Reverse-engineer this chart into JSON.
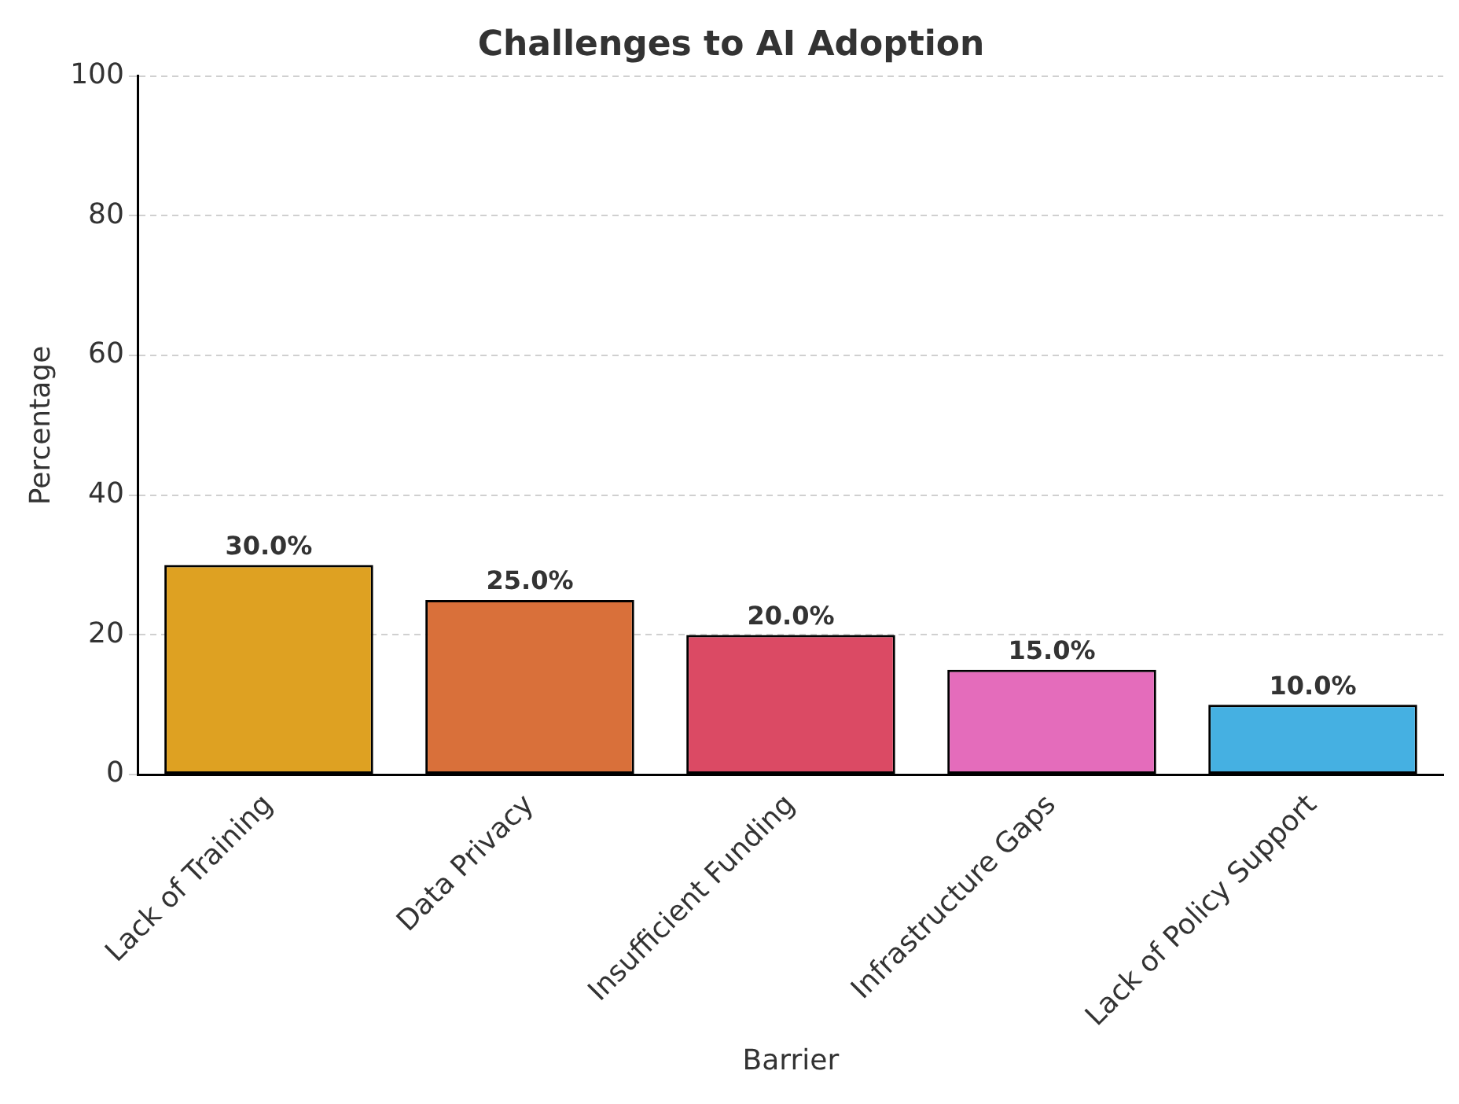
{
  "chart_data": {
    "type": "bar",
    "title": "Challenges to AI Adoption",
    "xlabel": "Barrier",
    "ylabel": "Percentage",
    "categories": [
      "Lack of Training",
      "Data Privacy",
      "Insufficient Funding",
      "Infrastructure Gaps",
      "Lack of Policy Support"
    ],
    "values": [
      30,
      25,
      20,
      15,
      10
    ],
    "colors": [
      "#dea122",
      "#d9703a",
      "#db4a64",
      "#e46cbb",
      "#45b0e2"
    ],
    "value_labels": [
      "30.0%",
      "25.0%",
      "20.0%",
      "15.0%",
      "10.0%"
    ],
    "ylim": [
      0,
      100
    ],
    "yticks": [
      0,
      20,
      40,
      60,
      80,
      100
    ],
    "grid": "y",
    "legend": false
  }
}
